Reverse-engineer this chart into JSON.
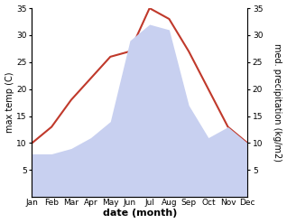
{
  "months": [
    "Jan",
    "Feb",
    "Mar",
    "Apr",
    "May",
    "Jun",
    "Jul",
    "Aug",
    "Sep",
    "Oct",
    "Nov",
    "Dec"
  ],
  "temp_max": [
    10,
    13,
    18,
    22,
    26,
    27,
    35,
    33,
    27,
    20,
    13,
    10
  ],
  "precip": [
    8,
    8,
    9,
    11,
    14,
    29,
    32,
    31,
    17,
    11,
    13,
    10
  ],
  "temp_color": "#c0392b",
  "precip_fill_color": "#c8d0f0",
  "background_color": "#ffffff",
  "ylabel_left": "max temp (C)",
  "ylabel_right": "med. precipitation (kg/m2)",
  "xlabel": "date (month)",
  "ylim_left": [
    0,
    35
  ],
  "ylim_right": [
    0,
    35
  ],
  "yticks_left": [
    5,
    10,
    15,
    20,
    25,
    30,
    35
  ],
  "yticks_right": [
    5,
    10,
    15,
    20,
    25,
    30,
    35
  ],
  "label_fontsize": 7,
  "tick_fontsize": 6.5,
  "xlabel_fontsize": 8,
  "line_width": 1.5
}
